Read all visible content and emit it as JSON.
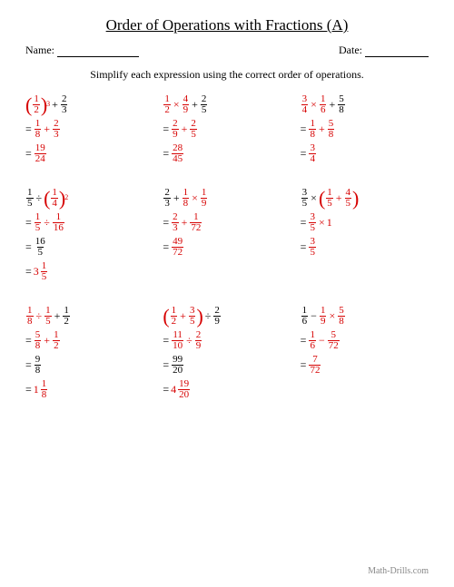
{
  "title": "Order of Operations with Fractions (A)",
  "name_label": "Name:",
  "date_label": "Date:",
  "instructions": "Simplify each expression using the correct order of operations.",
  "footer": "Math-Drills.com",
  "colors": {
    "highlight": "#d60000",
    "text": "#000000",
    "footer": "#888888"
  },
  "sym": {
    "plus": "+",
    "minus": "−",
    "times": "×",
    "divide": "÷",
    "eq": "="
  },
  "problems": [
    {
      "lines": [
        {
          "eq": false,
          "parts": [
            {
              "t": "lp",
              "red": true
            },
            {
              "t": "frac",
              "n": "1",
              "d": "2",
              "red": true
            },
            {
              "t": "rp",
              "red": true
            },
            {
              "t": "exp",
              "v": "3",
              "red": true
            },
            {
              "t": "op",
              "v": "+"
            },
            {
              "t": "frac",
              "n": "2",
              "d": "3"
            }
          ]
        },
        {
          "eq": true,
          "parts": [
            {
              "t": "frac",
              "n": "1",
              "d": "8",
              "red": true
            },
            {
              "t": "op",
              "v": "+",
              "red": true
            },
            {
              "t": "frac",
              "n": "2",
              "d": "3",
              "red": true
            }
          ]
        },
        {
          "eq": true,
          "parts": [
            {
              "t": "frac",
              "n": "19",
              "d": "24",
              "red": true
            }
          ]
        }
      ]
    },
    {
      "lines": [
        {
          "eq": false,
          "parts": [
            {
              "t": "frac",
              "n": "1",
              "d": "2",
              "red": true
            },
            {
              "t": "op",
              "v": "×",
              "red": true
            },
            {
              "t": "frac",
              "n": "4",
              "d": "9",
              "red": true
            },
            {
              "t": "op",
              "v": "+"
            },
            {
              "t": "frac",
              "n": "2",
              "d": "5"
            }
          ]
        },
        {
          "eq": true,
          "parts": [
            {
              "t": "frac",
              "n": "2",
              "d": "9",
              "red": true
            },
            {
              "t": "op",
              "v": "+",
              "red": true
            },
            {
              "t": "frac",
              "n": "2",
              "d": "5",
              "red": true
            }
          ]
        },
        {
          "eq": true,
          "parts": [
            {
              "t": "frac",
              "n": "28",
              "d": "45",
              "red": true
            }
          ]
        }
      ]
    },
    {
      "lines": [
        {
          "eq": false,
          "parts": [
            {
              "t": "frac",
              "n": "3",
              "d": "4",
              "red": true
            },
            {
              "t": "op",
              "v": "×",
              "red": true
            },
            {
              "t": "frac",
              "n": "1",
              "d": "6",
              "red": true
            },
            {
              "t": "op",
              "v": "+"
            },
            {
              "t": "frac",
              "n": "5",
              "d": "8"
            }
          ]
        },
        {
          "eq": true,
          "parts": [
            {
              "t": "frac",
              "n": "1",
              "d": "8",
              "red": true
            },
            {
              "t": "op",
              "v": "+",
              "red": true
            },
            {
              "t": "frac",
              "n": "5",
              "d": "8",
              "red": true
            }
          ]
        },
        {
          "eq": true,
          "parts": [
            {
              "t": "frac",
              "n": "3",
              "d": "4",
              "red": true
            }
          ]
        }
      ]
    },
    {
      "lines": [
        {
          "eq": false,
          "parts": [
            {
              "t": "frac",
              "n": "1",
              "d": "5"
            },
            {
              "t": "op",
              "v": "÷"
            },
            {
              "t": "lp",
              "red": true
            },
            {
              "t": "frac",
              "n": "1",
              "d": "4",
              "red": true
            },
            {
              "t": "rp",
              "red": true
            },
            {
              "t": "exp",
              "v": "2",
              "red": true
            }
          ]
        },
        {
          "eq": true,
          "parts": [
            {
              "t": "frac",
              "n": "1",
              "d": "5",
              "red": true
            },
            {
              "t": "op",
              "v": "÷",
              "red": true
            },
            {
              "t": "frac",
              "n": "1",
              "d": "16",
              "red": true
            }
          ]
        },
        {
          "eq": true,
          "parts": [
            {
              "t": "frac",
              "n": "16",
              "d": "5"
            }
          ]
        },
        {
          "eq": true,
          "parts": [
            {
              "t": "mixed",
              "w": "3",
              "n": "1",
              "d": "5",
              "red": true
            }
          ]
        }
      ]
    },
    {
      "lines": [
        {
          "eq": false,
          "parts": [
            {
              "t": "frac",
              "n": "2",
              "d": "3"
            },
            {
              "t": "op",
              "v": "+"
            },
            {
              "t": "frac",
              "n": "1",
              "d": "8",
              "red": true
            },
            {
              "t": "op",
              "v": "×",
              "red": true
            },
            {
              "t": "frac",
              "n": "1",
              "d": "9",
              "red": true
            }
          ]
        },
        {
          "eq": true,
          "parts": [
            {
              "t": "frac",
              "n": "2",
              "d": "3",
              "red": true
            },
            {
              "t": "op",
              "v": "+",
              "red": true
            },
            {
              "t": "frac",
              "n": "1",
              "d": "72",
              "red": true
            }
          ]
        },
        {
          "eq": true,
          "parts": [
            {
              "t": "frac",
              "n": "49",
              "d": "72",
              "red": true
            }
          ]
        }
      ]
    },
    {
      "lines": [
        {
          "eq": false,
          "parts": [
            {
              "t": "frac",
              "n": "3",
              "d": "5"
            },
            {
              "t": "op",
              "v": "×"
            },
            {
              "t": "lp",
              "red": true
            },
            {
              "t": "frac",
              "n": "1",
              "d": "5",
              "red": true
            },
            {
              "t": "op",
              "v": "+",
              "red": true
            },
            {
              "t": "frac",
              "n": "4",
              "d": "5",
              "red": true
            },
            {
              "t": "rp",
              "red": true
            }
          ]
        },
        {
          "eq": true,
          "parts": [
            {
              "t": "frac",
              "n": "3",
              "d": "5",
              "red": true
            },
            {
              "t": "op",
              "v": "×",
              "red": true
            },
            {
              "t": "txt",
              "v": "1",
              "red": true
            }
          ]
        },
        {
          "eq": true,
          "parts": [
            {
              "t": "frac",
              "n": "3",
              "d": "5",
              "red": true
            }
          ]
        }
      ]
    },
    {
      "lines": [
        {
          "eq": false,
          "parts": [
            {
              "t": "frac",
              "n": "1",
              "d": "8",
              "red": true
            },
            {
              "t": "op",
              "v": "÷",
              "red": true
            },
            {
              "t": "frac",
              "n": "1",
              "d": "5",
              "red": true
            },
            {
              "t": "op",
              "v": "+"
            },
            {
              "t": "frac",
              "n": "1",
              "d": "2"
            }
          ]
        },
        {
          "eq": true,
          "parts": [
            {
              "t": "frac",
              "n": "5",
              "d": "8",
              "red": true
            },
            {
              "t": "op",
              "v": "+",
              "red": true
            },
            {
              "t": "frac",
              "n": "1",
              "d": "2",
              "red": true
            }
          ]
        },
        {
          "eq": true,
          "parts": [
            {
              "t": "frac",
              "n": "9",
              "d": "8"
            }
          ]
        },
        {
          "eq": true,
          "parts": [
            {
              "t": "mixed",
              "w": "1",
              "n": "1",
              "d": "8",
              "red": true
            }
          ]
        }
      ]
    },
    {
      "lines": [
        {
          "eq": false,
          "parts": [
            {
              "t": "lp",
              "red": true
            },
            {
              "t": "frac",
              "n": "1",
              "d": "2",
              "red": true
            },
            {
              "t": "op",
              "v": "+",
              "red": true
            },
            {
              "t": "frac",
              "n": "3",
              "d": "5",
              "red": true
            },
            {
              "t": "rp",
              "red": true
            },
            {
              "t": "op",
              "v": "÷"
            },
            {
              "t": "frac",
              "n": "2",
              "d": "9"
            }
          ]
        },
        {
          "eq": true,
          "parts": [
            {
              "t": "frac",
              "n": "11",
              "d": "10",
              "red": true
            },
            {
              "t": "op",
              "v": "÷",
              "red": true
            },
            {
              "t": "frac",
              "n": "2",
              "d": "9",
              "red": true
            }
          ]
        },
        {
          "eq": true,
          "parts": [
            {
              "t": "frac",
              "n": "99",
              "d": "20"
            }
          ]
        },
        {
          "eq": true,
          "parts": [
            {
              "t": "mixed",
              "w": "4",
              "n": "19",
              "d": "20",
              "red": true
            }
          ]
        }
      ]
    },
    {
      "lines": [
        {
          "eq": false,
          "parts": [
            {
              "t": "frac",
              "n": "1",
              "d": "6"
            },
            {
              "t": "op",
              "v": "−"
            },
            {
              "t": "frac",
              "n": "1",
              "d": "9",
              "red": true
            },
            {
              "t": "op",
              "v": "×",
              "red": true
            },
            {
              "t": "frac",
              "n": "5",
              "d": "8",
              "red": true
            }
          ]
        },
        {
          "eq": true,
          "parts": [
            {
              "t": "frac",
              "n": "1",
              "d": "6",
              "red": true
            },
            {
              "t": "op",
              "v": "−",
              "red": true
            },
            {
              "t": "frac",
              "n": "5",
              "d": "72",
              "red": true
            }
          ]
        },
        {
          "eq": true,
          "parts": [
            {
              "t": "frac",
              "n": "7",
              "d": "72",
              "red": true
            }
          ]
        }
      ]
    }
  ]
}
